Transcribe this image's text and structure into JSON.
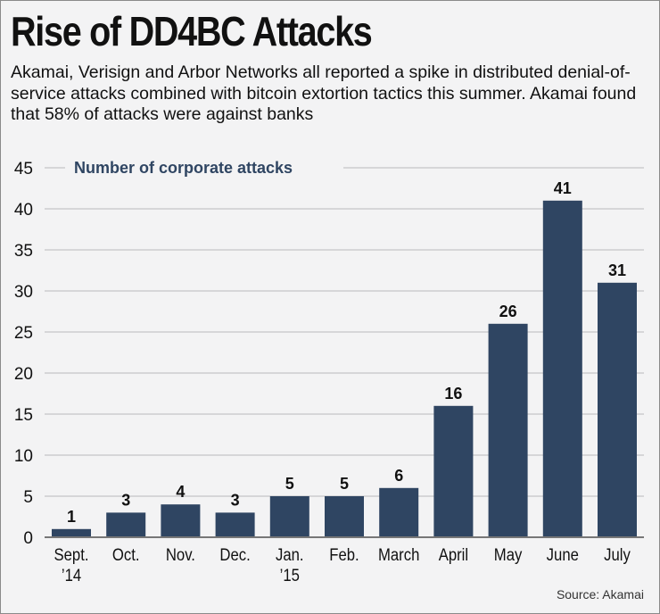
{
  "title": "Rise of DD4BC Attacks",
  "subtitle": "Akamai, Verisign and Arbor Networks all reported a spike in distributed denial-of-service attacks combined with bitcoin extortion tactics this summer. Akamai found that 58% of attacks were against banks",
  "source": "Source: Akamai",
  "colors": {
    "bar": "#2f4562",
    "legend_text": "#2f4562",
    "grid": "#d6d6d8"
  },
  "chart_data": {
    "type": "bar",
    "title": "Rise of DD4BC Attacks",
    "legend": "Number of corporate attacks",
    "categories": [
      [
        "Sept.",
        "’14"
      ],
      [
        "Oct."
      ],
      [
        "Nov."
      ],
      [
        "Dec."
      ],
      [
        "Jan.",
        "’15"
      ],
      [
        "Feb."
      ],
      [
        "March"
      ],
      [
        "April"
      ],
      [
        "May"
      ],
      [
        "June"
      ],
      [
        "July"
      ]
    ],
    "values": [
      1,
      3,
      4,
      3,
      5,
      5,
      6,
      16,
      26,
      41,
      31
    ],
    "ylim": [
      0,
      45
    ],
    "yticks": [
      0,
      5,
      10,
      15,
      20,
      25,
      30,
      35,
      40,
      45
    ],
    "grid": true,
    "xlabel": "",
    "ylabel": ""
  }
}
